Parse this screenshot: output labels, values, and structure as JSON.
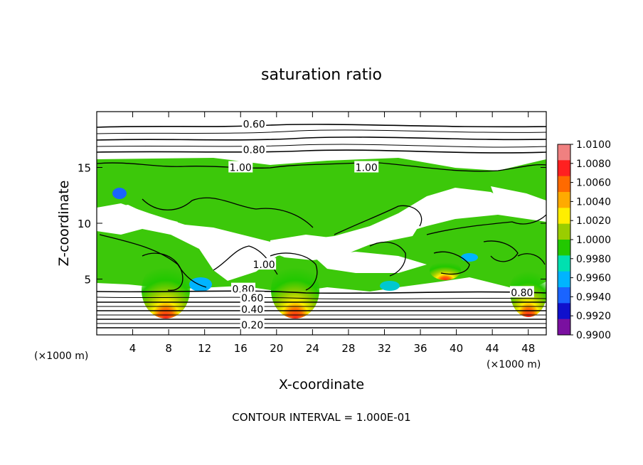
{
  "chart_data": {
    "type": "contour",
    "title": "saturation ratio",
    "xlabel": "X-coordinate",
    "ylabel": "Z-coordinate",
    "x_unit_left": "(×1000 m)",
    "x_unit_right": "(×1000 m)",
    "xlim": [
      0,
      50
    ],
    "ylim": [
      0,
      20
    ],
    "x_ticks": [
      4,
      8,
      12,
      16,
      20,
      24,
      28,
      32,
      36,
      40,
      44,
      48
    ],
    "y_ticks": [
      5,
      10,
      15
    ],
    "contour_interval_text": "CONTOUR INTERVAL = 1.000E-01",
    "contour_labels": [
      {
        "text": "0.60",
        "x": 17.5,
        "y": 18.9
      },
      {
        "text": "0.80",
        "x": 17.5,
        "y": 16.6
      },
      {
        "text": "1.00",
        "x": 16.0,
        "y": 15.0
      },
      {
        "text": "1.00",
        "x": 30.0,
        "y": 15.0
      },
      {
        "text": "0.80",
        "x": 16.3,
        "y": 4.1
      },
      {
        "text": "0.60",
        "x": 17.3,
        "y": 3.3
      },
      {
        "text": "0.40",
        "x": 17.3,
        "y": 2.3
      },
      {
        "text": "0.20",
        "x": 17.3,
        "y": 0.9
      },
      {
        "text": "0.80",
        "x": 47.3,
        "y": 3.8
      },
      {
        "text": "1.00",
        "x": 18.6,
        "y": 6.3
      }
    ],
    "colorbar": {
      "labels": [
        "1.0100",
        "1.0080",
        "1.0060",
        "1.0040",
        "1.0020",
        "1.0000",
        "0.9980",
        "0.9960",
        "0.9940",
        "0.9920",
        "0.9900"
      ],
      "colors": [
        "#f08080",
        "#ff2020",
        "#ff6a00",
        "#ffaa00",
        "#ffee00",
        "#9acd00",
        "#22c800",
        "#00e0b0",
        "#00b4ff",
        "#1a64ff",
        "#1010cc",
        "#7a10a0"
      ]
    },
    "peaks": [
      {
        "x": 8.5,
        "y": 5.8
      },
      {
        "x": 21.5,
        "y": 5.8
      },
      {
        "x": 47.5,
        "y": 5.5
      }
    ]
  }
}
